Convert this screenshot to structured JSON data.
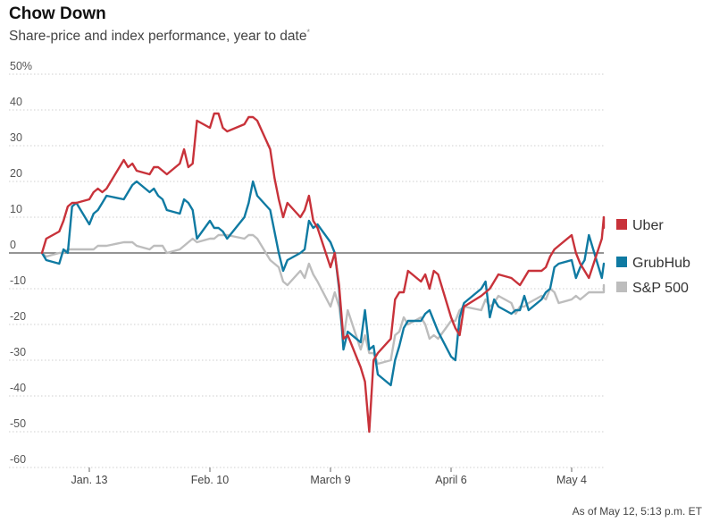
{
  "header": {
    "title": "Chow Down",
    "subtitle": "Share-price and index performance, year to date",
    "subtitle_mark": "*"
  },
  "footnote": "As of May 12, 5:13 p.m. ET",
  "colors": {
    "uber": "#c8323a",
    "grubhub": "#0f7aa2",
    "sp500": "#bdbdbd",
    "grid": "#cfcfcf",
    "zero": "#555555"
  },
  "chart_data": {
    "type": "line",
    "title": "Chow Down",
    "subtitle": "Share-price and index performance, year to date",
    "xlabel": "",
    "ylabel": "",
    "ylim": [
      -60,
      50
    ],
    "yticks": [
      50,
      40,
      30,
      20,
      10,
      0,
      -10,
      -20,
      -30,
      -40,
      -50,
      -60
    ],
    "ytick_labels": [
      "50%",
      "40",
      "30",
      "20",
      "10",
      "0",
      "-10",
      "-20",
      "-30",
      "-40",
      "-50",
      "-60"
    ],
    "xlim": [
      "2020-01-01",
      "2020-05-12"
    ],
    "xticks": [
      {
        "date": "2020-01-13",
        "label": "Jan. 13"
      },
      {
        "date": "2020-02-10",
        "label": "Feb. 10"
      },
      {
        "date": "2020-03-09",
        "label": "March 9"
      },
      {
        "date": "2020-04-06",
        "label": "April 6"
      },
      {
        "date": "2020-05-04",
        "label": "May 4"
      }
    ],
    "grid": true,
    "legend_position": "right",
    "series": [
      {
        "name": "Uber",
        "color_key": "uber",
        "points": [
          [
            "2020-01-02",
            0
          ],
          [
            "2020-01-03",
            4
          ],
          [
            "2020-01-06",
            6
          ],
          [
            "2020-01-07",
            9
          ],
          [
            "2020-01-08",
            13
          ],
          [
            "2020-01-09",
            14
          ],
          [
            "2020-01-10",
            14
          ],
          [
            "2020-01-13",
            15
          ],
          [
            "2020-01-14",
            17
          ],
          [
            "2020-01-15",
            18
          ],
          [
            "2020-01-16",
            17
          ],
          [
            "2020-01-17",
            18
          ],
          [
            "2020-01-21",
            26
          ],
          [
            "2020-01-22",
            24
          ],
          [
            "2020-01-23",
            25
          ],
          [
            "2020-01-24",
            23
          ],
          [
            "2020-01-27",
            22
          ],
          [
            "2020-01-28",
            24
          ],
          [
            "2020-01-29",
            24
          ],
          [
            "2020-01-30",
            23
          ],
          [
            "2020-01-31",
            22
          ],
          [
            "2020-02-03",
            25
          ],
          [
            "2020-02-04",
            29
          ],
          [
            "2020-02-05",
            24
          ],
          [
            "2020-02-06",
            25
          ],
          [
            "2020-02-07",
            37
          ],
          [
            "2020-02-10",
            35
          ],
          [
            "2020-02-11",
            39
          ],
          [
            "2020-02-12",
            39
          ],
          [
            "2020-02-13",
            35
          ],
          [
            "2020-02-14",
            34
          ],
          [
            "2020-02-18",
            36
          ],
          [
            "2020-02-19",
            38
          ],
          [
            "2020-02-20",
            38
          ],
          [
            "2020-02-21",
            37
          ],
          [
            "2020-02-24",
            29
          ],
          [
            "2020-02-25",
            21
          ],
          [
            "2020-02-26",
            15
          ],
          [
            "2020-02-27",
            10
          ],
          [
            "2020-02-28",
            14
          ],
          [
            "2020-03-02",
            10
          ],
          [
            "2020-03-03",
            12
          ],
          [
            "2020-03-04",
            16
          ],
          [
            "2020-03-05",
            9
          ],
          [
            "2020-03-06",
            7
          ],
          [
            "2020-03-09",
            -4
          ],
          [
            "2020-03-10",
            0
          ],
          [
            "2020-03-11",
            -9
          ],
          [
            "2020-03-12",
            -24
          ],
          [
            "2020-03-13",
            -23
          ],
          [
            "2020-03-16",
            -32
          ],
          [
            "2020-03-17",
            -36
          ],
          [
            "2020-03-18",
            -50
          ],
          [
            "2020-03-19",
            -30
          ],
          [
            "2020-03-20",
            -28
          ],
          [
            "2020-03-23",
            -24
          ],
          [
            "2020-03-24",
            -13
          ],
          [
            "2020-03-25",
            -11
          ],
          [
            "2020-03-26",
            -11
          ],
          [
            "2020-03-27",
            -5
          ],
          [
            "2020-03-30",
            -8
          ],
          [
            "2020-03-31",
            -6
          ],
          [
            "2020-04-01",
            -10
          ],
          [
            "2020-04-02",
            -5
          ],
          [
            "2020-04-03",
            -6
          ],
          [
            "2020-04-06",
            -18
          ],
          [
            "2020-04-07",
            -21
          ],
          [
            "2020-04-08",
            -23
          ],
          [
            "2020-04-09",
            -15
          ],
          [
            "2020-04-13",
            -12
          ],
          [
            "2020-04-14",
            -11
          ],
          [
            "2020-04-15",
            -10
          ],
          [
            "2020-04-16",
            -8
          ],
          [
            "2020-04-17",
            -6
          ],
          [
            "2020-04-20",
            -7
          ],
          [
            "2020-04-21",
            -8
          ],
          [
            "2020-04-22",
            -9
          ],
          [
            "2020-04-23",
            -7
          ],
          [
            "2020-04-24",
            -5
          ],
          [
            "2020-04-27",
            -5
          ],
          [
            "2020-04-28",
            -4
          ],
          [
            "2020-04-29",
            -1
          ],
          [
            "2020-04-30",
            1
          ],
          [
            "2020-05-01",
            2
          ],
          [
            "2020-05-04",
            5
          ],
          [
            "2020-05-05",
            0
          ],
          [
            "2020-05-06",
            -3
          ],
          [
            "2020-05-07",
            -5
          ],
          [
            "2020-05-08",
            -7
          ],
          [
            "2020-05-11",
            4
          ],
          [
            "2020-05-12",
            10
          ],
          [
            "2020-05-12T23:00",
            7
          ]
        ]
      },
      {
        "name": "GrubHub",
        "color_key": "grubhub",
        "points": [
          [
            "2020-01-02",
            0
          ],
          [
            "2020-01-03",
            -2
          ],
          [
            "2020-01-06",
            -3
          ],
          [
            "2020-01-07",
            1
          ],
          [
            "2020-01-08",
            0
          ],
          [
            "2020-01-09",
            13
          ],
          [
            "2020-01-10",
            14
          ],
          [
            "2020-01-13",
            8
          ],
          [
            "2020-01-14",
            11
          ],
          [
            "2020-01-15",
            12
          ],
          [
            "2020-01-16",
            14
          ],
          [
            "2020-01-17",
            16
          ],
          [
            "2020-01-21",
            15
          ],
          [
            "2020-01-22",
            17
          ],
          [
            "2020-01-23",
            19
          ],
          [
            "2020-01-24",
            20
          ],
          [
            "2020-01-27",
            17
          ],
          [
            "2020-01-28",
            18
          ],
          [
            "2020-01-29",
            16
          ],
          [
            "2020-01-30",
            15
          ],
          [
            "2020-01-31",
            12
          ],
          [
            "2020-02-03",
            11
          ],
          [
            "2020-02-04",
            15
          ],
          [
            "2020-02-05",
            14
          ],
          [
            "2020-02-06",
            12
          ],
          [
            "2020-02-07",
            4
          ],
          [
            "2020-02-10",
            9
          ],
          [
            "2020-02-11",
            7
          ],
          [
            "2020-02-12",
            7
          ],
          [
            "2020-02-13",
            6
          ],
          [
            "2020-02-14",
            4
          ],
          [
            "2020-02-18",
            10
          ],
          [
            "2020-02-19",
            14
          ],
          [
            "2020-02-20",
            20
          ],
          [
            "2020-02-21",
            16
          ],
          [
            "2020-02-24",
            12
          ],
          [
            "2020-02-25",
            6
          ],
          [
            "2020-02-26",
            0
          ],
          [
            "2020-02-27",
            -5
          ],
          [
            "2020-02-28",
            -2
          ],
          [
            "2020-03-02",
            0
          ],
          [
            "2020-03-03",
            1
          ],
          [
            "2020-03-04",
            9
          ],
          [
            "2020-03-05",
            7
          ],
          [
            "2020-03-06",
            8
          ],
          [
            "2020-03-09",
            3
          ],
          [
            "2020-03-10",
            0
          ],
          [
            "2020-03-11",
            -10
          ],
          [
            "2020-03-12",
            -27
          ],
          [
            "2020-03-13",
            -22
          ],
          [
            "2020-03-16",
            -25
          ],
          [
            "2020-03-17",
            -16
          ],
          [
            "2020-03-18",
            -27
          ],
          [
            "2020-03-19",
            -26
          ],
          [
            "2020-03-20",
            -34
          ],
          [
            "2020-03-23",
            -37
          ],
          [
            "2020-03-24",
            -30
          ],
          [
            "2020-03-25",
            -26
          ],
          [
            "2020-03-26",
            -21
          ],
          [
            "2020-03-27",
            -19
          ],
          [
            "2020-03-30",
            -19
          ],
          [
            "2020-03-31",
            -17
          ],
          [
            "2020-04-01",
            -16
          ],
          [
            "2020-04-02",
            -19
          ],
          [
            "2020-04-03",
            -22
          ],
          [
            "2020-04-06",
            -29
          ],
          [
            "2020-04-07",
            -30
          ],
          [
            "2020-04-08",
            -18
          ],
          [
            "2020-04-09",
            -14
          ],
          [
            "2020-04-13",
            -10
          ],
          [
            "2020-04-14",
            -8
          ],
          [
            "2020-04-15",
            -18
          ],
          [
            "2020-04-16",
            -13
          ],
          [
            "2020-04-17",
            -15
          ],
          [
            "2020-04-20",
            -17
          ],
          [
            "2020-04-21",
            -16
          ],
          [
            "2020-04-22",
            -16
          ],
          [
            "2020-04-23",
            -12
          ],
          [
            "2020-04-24",
            -16
          ],
          [
            "2020-04-27",
            -13
          ],
          [
            "2020-04-28",
            -11
          ],
          [
            "2020-04-29",
            -10
          ],
          [
            "2020-04-30",
            -4
          ],
          [
            "2020-05-01",
            -3
          ],
          [
            "2020-05-04",
            -2
          ],
          [
            "2020-05-05",
            -7
          ],
          [
            "2020-05-06",
            -4
          ],
          [
            "2020-05-07",
            -2
          ],
          [
            "2020-05-08",
            5
          ],
          [
            "2020-05-11",
            -7
          ],
          [
            "2020-05-12",
            -3
          ],
          [
            "2020-05-12T23:00",
            -3
          ]
        ]
      },
      {
        "name": "S&P 500",
        "color_key": "sp500",
        "points": [
          [
            "2020-01-02",
            0
          ],
          [
            "2020-01-03",
            -1
          ],
          [
            "2020-01-06",
            0
          ],
          [
            "2020-01-07",
            0
          ],
          [
            "2020-01-08",
            1
          ],
          [
            "2020-01-09",
            1
          ],
          [
            "2020-01-10",
            1
          ],
          [
            "2020-01-13",
            1
          ],
          [
            "2020-01-14",
            1
          ],
          [
            "2020-01-15",
            2
          ],
          [
            "2020-01-16",
            2
          ],
          [
            "2020-01-17",
            2
          ],
          [
            "2020-01-21",
            3
          ],
          [
            "2020-01-22",
            3
          ],
          [
            "2020-01-23",
            3
          ],
          [
            "2020-01-24",
            2
          ],
          [
            "2020-01-27",
            1
          ],
          [
            "2020-01-28",
            2
          ],
          [
            "2020-01-29",
            2
          ],
          [
            "2020-01-30",
            2
          ],
          [
            "2020-01-31",
            0
          ],
          [
            "2020-02-03",
            1
          ],
          [
            "2020-02-04",
            2
          ],
          [
            "2020-02-05",
            3
          ],
          [
            "2020-02-06",
            4
          ],
          [
            "2020-02-07",
            3
          ],
          [
            "2020-02-10",
            4
          ],
          [
            "2020-02-11",
            4
          ],
          [
            "2020-02-12",
            5
          ],
          [
            "2020-02-13",
            5
          ],
          [
            "2020-02-14",
            5
          ],
          [
            "2020-02-18",
            4
          ],
          [
            "2020-02-19",
            5
          ],
          [
            "2020-02-20",
            5
          ],
          [
            "2020-02-21",
            4
          ],
          [
            "2020-02-24",
            -2
          ],
          [
            "2020-02-25",
            -3
          ],
          [
            "2020-02-26",
            -4
          ],
          [
            "2020-02-27",
            -8
          ],
          [
            "2020-02-28",
            -9
          ],
          [
            "2020-03-02",
            -5
          ],
          [
            "2020-03-03",
            -7
          ],
          [
            "2020-03-04",
            -3
          ],
          [
            "2020-03-05",
            -6
          ],
          [
            "2020-03-06",
            -8
          ],
          [
            "2020-03-09",
            -15
          ],
          [
            "2020-03-10",
            -11
          ],
          [
            "2020-03-11",
            -15
          ],
          [
            "2020-03-12",
            -24
          ],
          [
            "2020-03-13",
            -16
          ],
          [
            "2020-03-16",
            -27
          ],
          [
            "2020-03-17",
            -23
          ],
          [
            "2020-03-18",
            -28
          ],
          [
            "2020-03-19",
            -28
          ],
          [
            "2020-03-20",
            -31
          ],
          [
            "2020-03-23",
            -30
          ],
          [
            "2020-03-24",
            -23
          ],
          [
            "2020-03-25",
            -22
          ],
          [
            "2020-03-26",
            -18
          ],
          [
            "2020-03-27",
            -20
          ],
          [
            "2020-03-30",
            -18
          ],
          [
            "2020-03-31",
            -20
          ],
          [
            "2020-04-01",
            -24
          ],
          [
            "2020-04-02",
            -23
          ],
          [
            "2020-04-03",
            -24
          ],
          [
            "2020-04-06",
            -19
          ],
          [
            "2020-04-07",
            -19
          ],
          [
            "2020-04-08",
            -16
          ],
          [
            "2020-04-09",
            -15
          ],
          [
            "2020-04-13",
            -16
          ],
          [
            "2020-04-14",
            -13
          ],
          [
            "2020-04-15",
            -15
          ],
          [
            "2020-04-16",
            -14
          ],
          [
            "2020-04-17",
            -12
          ],
          [
            "2020-04-20",
            -14
          ],
          [
            "2020-04-21",
            -17
          ],
          [
            "2020-04-22",
            -15
          ],
          [
            "2020-04-23",
            -15
          ],
          [
            "2020-04-24",
            -14
          ],
          [
            "2020-04-27",
            -12
          ],
          [
            "2020-04-28",
            -13
          ],
          [
            "2020-04-29",
            -10
          ],
          [
            "2020-04-30",
            -11
          ],
          [
            "2020-05-01",
            -14
          ],
          [
            "2020-05-04",
            -13
          ],
          [
            "2020-05-05",
            -12
          ],
          [
            "2020-05-06",
            -13
          ],
          [
            "2020-05-07",
            -12
          ],
          [
            "2020-05-08",
            -11
          ],
          [
            "2020-05-11",
            -11
          ],
          [
            "2020-05-12",
            -11
          ],
          [
            "2020-05-12T23:00",
            -9
          ]
        ]
      }
    ]
  }
}
